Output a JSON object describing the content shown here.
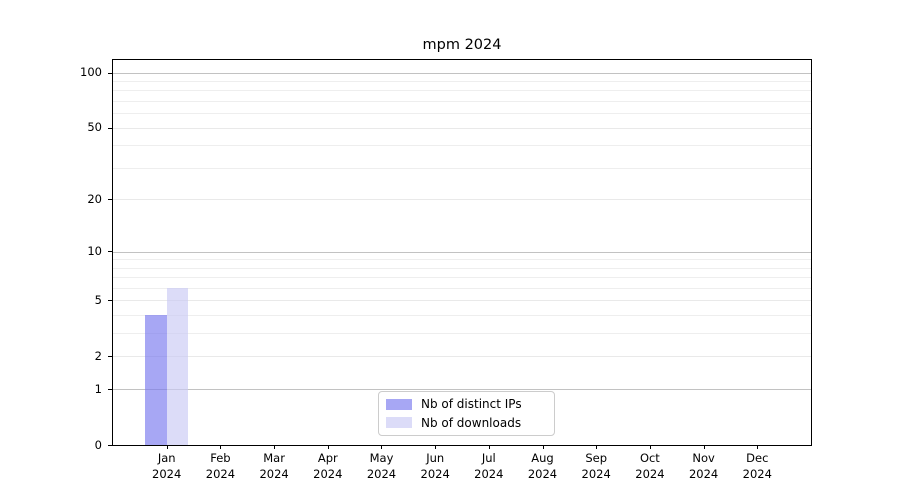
{
  "chart_data": {
    "type": "bar",
    "title": "mpm 2024",
    "xlabel": "",
    "ylabel": "",
    "x_tick_months": [
      "Jan",
      "Feb",
      "Mar",
      "Apr",
      "May",
      "Jun",
      "Jul",
      "Aug",
      "Sep",
      "Oct",
      "Nov",
      "Dec"
    ],
    "x_tick_year": "2024",
    "series": [
      {
        "name": "Nb of distinct IPs",
        "color": "rgba(120,120,238,0.65)",
        "color_hex": "#a7a7f4",
        "values": [
          4,
          0,
          0,
          0,
          0,
          0,
          0,
          0,
          0,
          0,
          0,
          0
        ]
      },
      {
        "name": "Nb of downloads",
        "color": "rgba(201,201,244,0.65)",
        "color_hex": "#dcdcf8",
        "values": [
          6,
          0,
          0,
          0,
          0,
          0,
          0,
          0,
          0,
          0,
          0,
          0
        ]
      }
    ],
    "y_scale": "log1p",
    "y_ticks": [
      100,
      50,
      20,
      10,
      5,
      2,
      1,
      0
    ],
    "y_decade_gridlines": [
      1,
      10,
      100
    ],
    "y_minor_gridlines": [
      3,
      4,
      6,
      7,
      8,
      9,
      30,
      40,
      60,
      70,
      80,
      90
    ],
    "ylim": [
      0,
      117
    ],
    "grid": true,
    "legend": {
      "position": "lower center"
    }
  }
}
